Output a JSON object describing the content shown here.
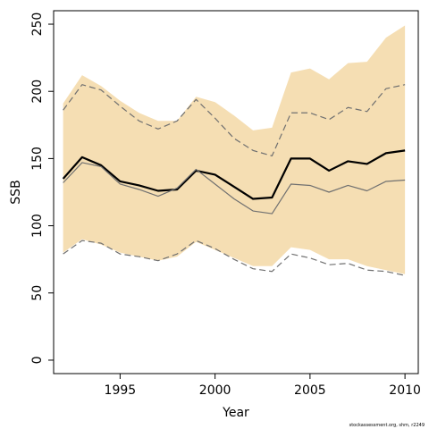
{
  "chart_data": {
    "type": "line",
    "xlabel": "Year",
    "ylabel": "SSB",
    "xlim": [
      1991.5,
      2010.7
    ],
    "ylim": [
      -10,
      260
    ],
    "x_ticks": [
      1995,
      2000,
      2005,
      2010
    ],
    "y_ticks": [
      0,
      50,
      100,
      150,
      200,
      250
    ],
    "grid": false,
    "legend": "none",
    "x": [
      1992,
      1993,
      1994,
      1995,
      1996,
      1997,
      1998,
      1999,
      2000,
      2001,
      2002,
      2003,
      2004,
      2005,
      2006,
      2007,
      2008,
      2009,
      2010
    ],
    "band": {
      "color": "#f5deb3",
      "upper": [
        191,
        212,
        204,
        193,
        184,
        178,
        178,
        196,
        192,
        182,
        171,
        173,
        214,
        217,
        209,
        221,
        222,
        240,
        249
      ],
      "lower": [
        80,
        90,
        86,
        80,
        77,
        74,
        77,
        88,
        82,
        76,
        70,
        70,
        84,
        82,
        75,
        75,
        70,
        67,
        64
      ]
    },
    "series": [
      {
        "values": [
          135,
          151,
          145,
          133,
          130,
          126,
          127,
          141,
          138,
          129,
          120,
          121,
          150,
          150,
          141,
          148,
          146,
          154,
          156
        ],
        "color": "#000000",
        "style": "solid-thick"
      },
      {
        "values": [
          132,
          147,
          144,
          131,
          127,
          122,
          128,
          142,
          131,
          120,
          111,
          109,
          131,
          130,
          125,
          130,
          126,
          133,
          134
        ],
        "color": "#707070",
        "style": "solid"
      },
      {
        "values": [
          186,
          205,
          201,
          189,
          178,
          172,
          178,
          194,
          180,
          165,
          156,
          152,
          184,
          184,
          179,
          188,
          185,
          202,
          205
        ],
        "color": "#707070",
        "style": "dashed"
      },
      {
        "values": [
          79,
          89,
          87,
          79,
          77,
          74,
          79,
          89,
          83,
          75,
          68,
          66,
          79,
          76,
          71,
          72,
          67,
          66,
          63
        ],
        "color": "#707070",
        "style": "dashed"
      }
    ]
  },
  "footer": {
    "credit": "stockassessment.org, shm, r2249"
  }
}
